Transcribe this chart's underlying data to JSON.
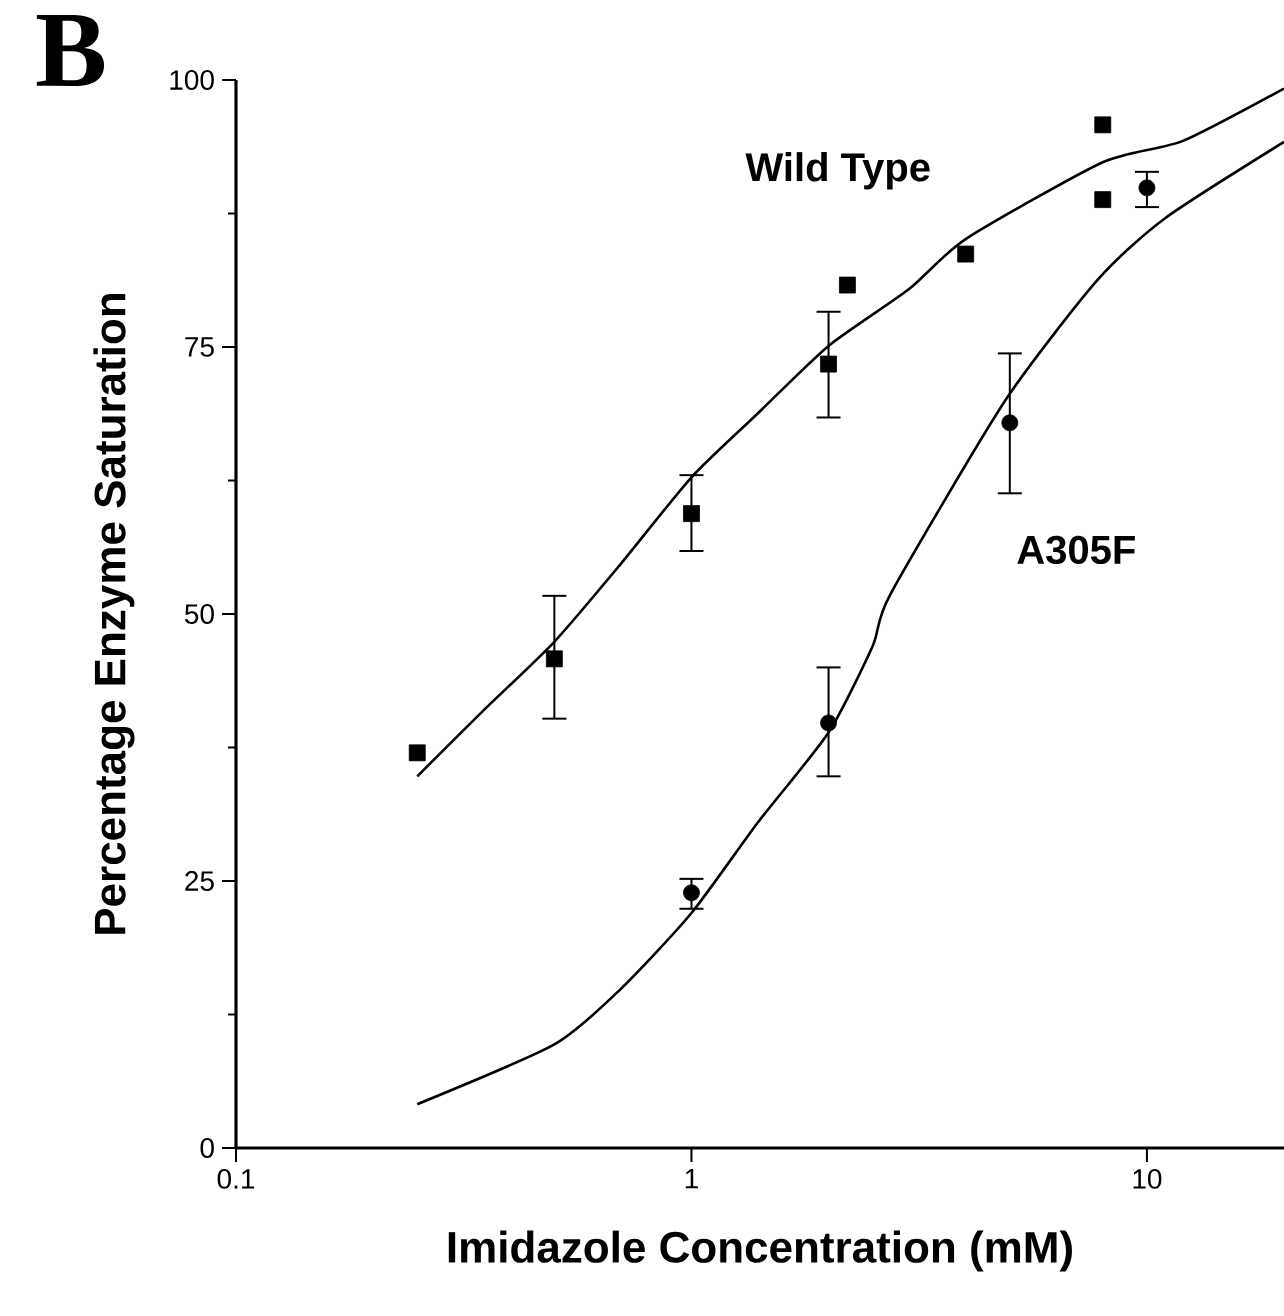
{
  "chart_data": {
    "type": "scatter",
    "xlabel": "Imidazole Concentration (mM)",
    "ylabel": "Percentage Enzyme Saturation",
    "annotations": [
      "B"
    ],
    "log": "x",
    "xlim": [
      0.1,
      20
    ],
    "ylim": [
      0,
      100
    ],
    "xticks": [
      0.1,
      1,
      10
    ],
    "yticks": [
      0,
      25,
      50,
      75,
      100
    ],
    "series": [
      {
        "name": "Wild Type",
        "marker": "square",
        "color": "#000000",
        "x": [
          0.25,
          0.5,
          1,
          2,
          2.2,
          4,
          8,
          8
        ],
        "values": [
          37,
          45.8,
          59.4,
          73.4,
          80.8,
          83.7,
          95.8,
          88.8
        ],
        "errors": [
          null,
          [
            40.2,
            51.7
          ],
          [
            55.9,
            63.0
          ],
          [
            68.4,
            78.3
          ],
          null,
          null,
          null,
          null
        ]
      },
      {
        "type": "line",
        "marker": "none",
        "color": "#000000",
        "x": [
          0.25,
          0.35,
          0.5,
          0.7,
          1,
          1.4,
          2,
          3,
          4,
          8,
          12,
          20
        ],
        "values": [
          34.8,
          41.0,
          47.4,
          54.7,
          62.8,
          68.8,
          75.1,
          80.4,
          85.1,
          92.3,
          94.3,
          99.2
        ]
      },
      {
        "name": "A305F",
        "marker": "circle",
        "color": "#000000",
        "x": [
          1,
          2,
          5,
          10
        ],
        "values": [
          23.9,
          39.8,
          67.9,
          89.9
        ],
        "errors": [
          [
            22.4,
            25.2
          ],
          [
            34.8,
            45.0
          ],
          [
            61.3,
            74.4
          ],
          [
            88.1,
            91.4
          ]
        ]
      },
      {
        "type": "line",
        "marker": "none",
        "color": "#000000",
        "x": [
          0.25,
          0.5,
          0.7,
          1,
          1.4,
          2,
          2.5,
          2.73,
          4.87,
          7.8,
          11,
          20
        ],
        "values": [
          4.1,
          9.7,
          14.9,
          22.0,
          30.5,
          38.9,
          47.0,
          51.8,
          69.9,
          81.3,
          87.1,
          94.2
        ]
      }
    ]
  }
}
